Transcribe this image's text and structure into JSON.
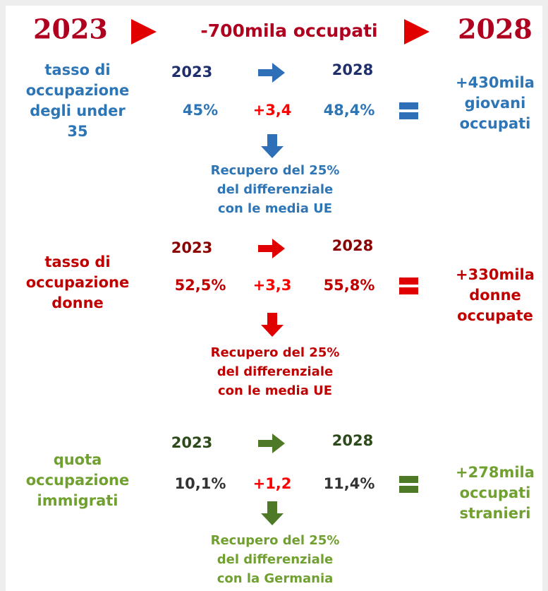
{
  "header": {
    "start_year": "2023",
    "headline": "-700mila occupati",
    "end_year": "2028"
  },
  "sections": [
    {
      "label": [
        "tasso di",
        "occupazione",
        "degli under",
        "35"
      ],
      "year_start": "2023",
      "year_end": "2028",
      "value_start": "45%",
      "change": "+3,4",
      "value_end": "48,4%",
      "result": [
        "+430mila",
        "giovani",
        "occupati"
      ],
      "note": [
        "Recupero del 25%",
        "del differenziale",
        "con le media UE"
      ]
    },
    {
      "label": [
        "tasso di",
        "occupazione",
        "donne"
      ],
      "year_start": "2023",
      "year_end": "2028",
      "value_start": "52,5%",
      "change": "+3,3",
      "value_end": "55,8%",
      "result": [
        "+330mila",
        "donne",
        "occupate"
      ],
      "note": [
        "Recupero del 25%",
        "del differenziale",
        "con le media UE"
      ]
    },
    {
      "label": [
        "quota",
        "occupazione",
        "immigrati"
      ],
      "year_start": "2023",
      "year_end": "2028",
      "value_start": "10,1%",
      "change": "+1,2",
      "value_end": "11,4%",
      "result": [
        "+278mila",
        "occupati",
        "stranieri"
      ],
      "note": [
        "Recupero del 25%",
        "del differenziale",
        "con la Germania"
      ]
    }
  ]
}
